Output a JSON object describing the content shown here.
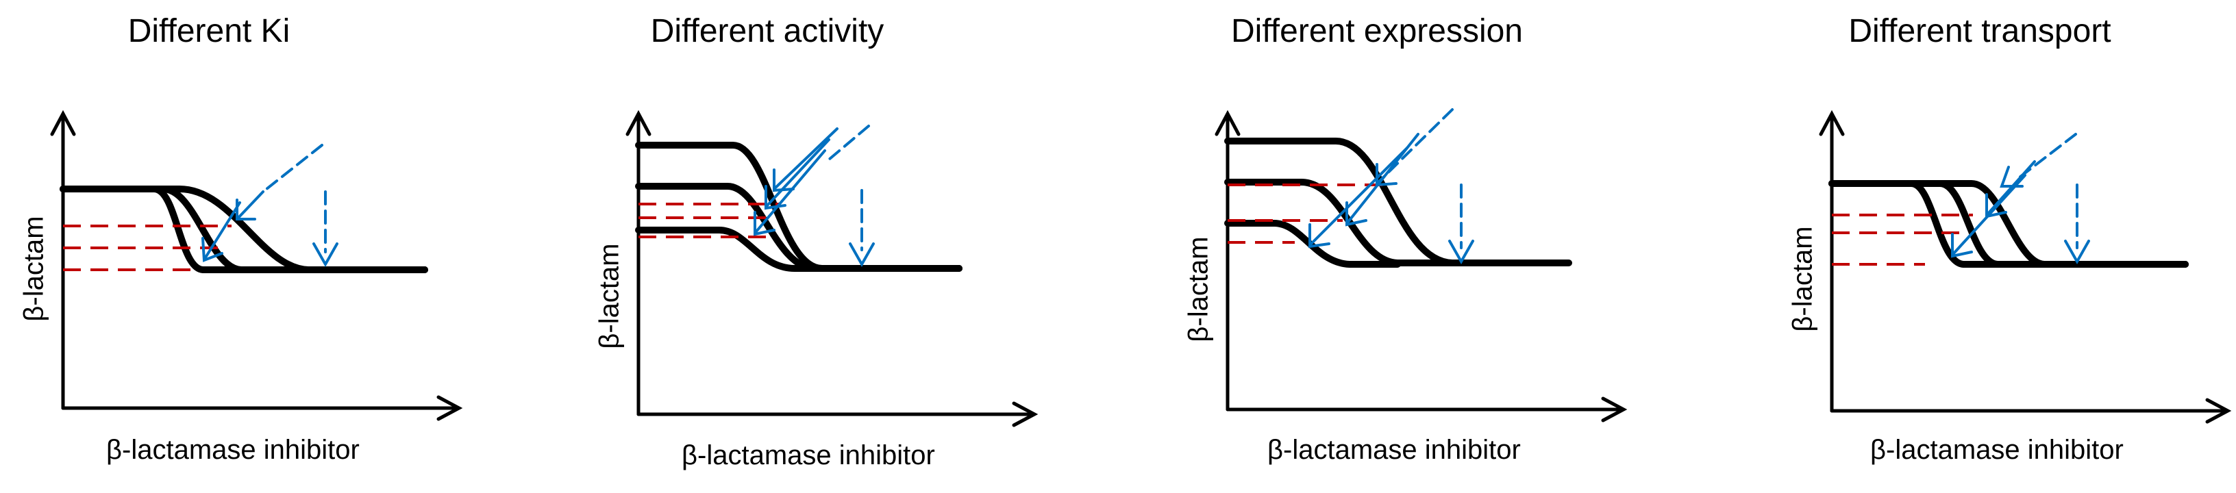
{
  "colors": {
    "curve": "#000000",
    "dashed_level": "#c00000",
    "arrow": "#0070c0"
  },
  "panels": [
    {
      "id": "ki",
      "title": "Different Ki",
      "ylabel": "β-lactam",
      "xlabel": "β-lactamase inhibitor"
    },
    {
      "id": "activity",
      "title": "Different activity",
      "ylabel": "β-lactam",
      "xlabel": "β-lactamase inhibitor"
    },
    {
      "id": "expression",
      "title": "Different expression",
      "ylabel": "β-lactam",
      "xlabel": "β-lactamase inhibitor"
    },
    {
      "id": "transport",
      "title": "Different transport",
      "ylabel": "β-lactam",
      "xlabel": "β-lactamase inhibitor"
    }
  ]
}
